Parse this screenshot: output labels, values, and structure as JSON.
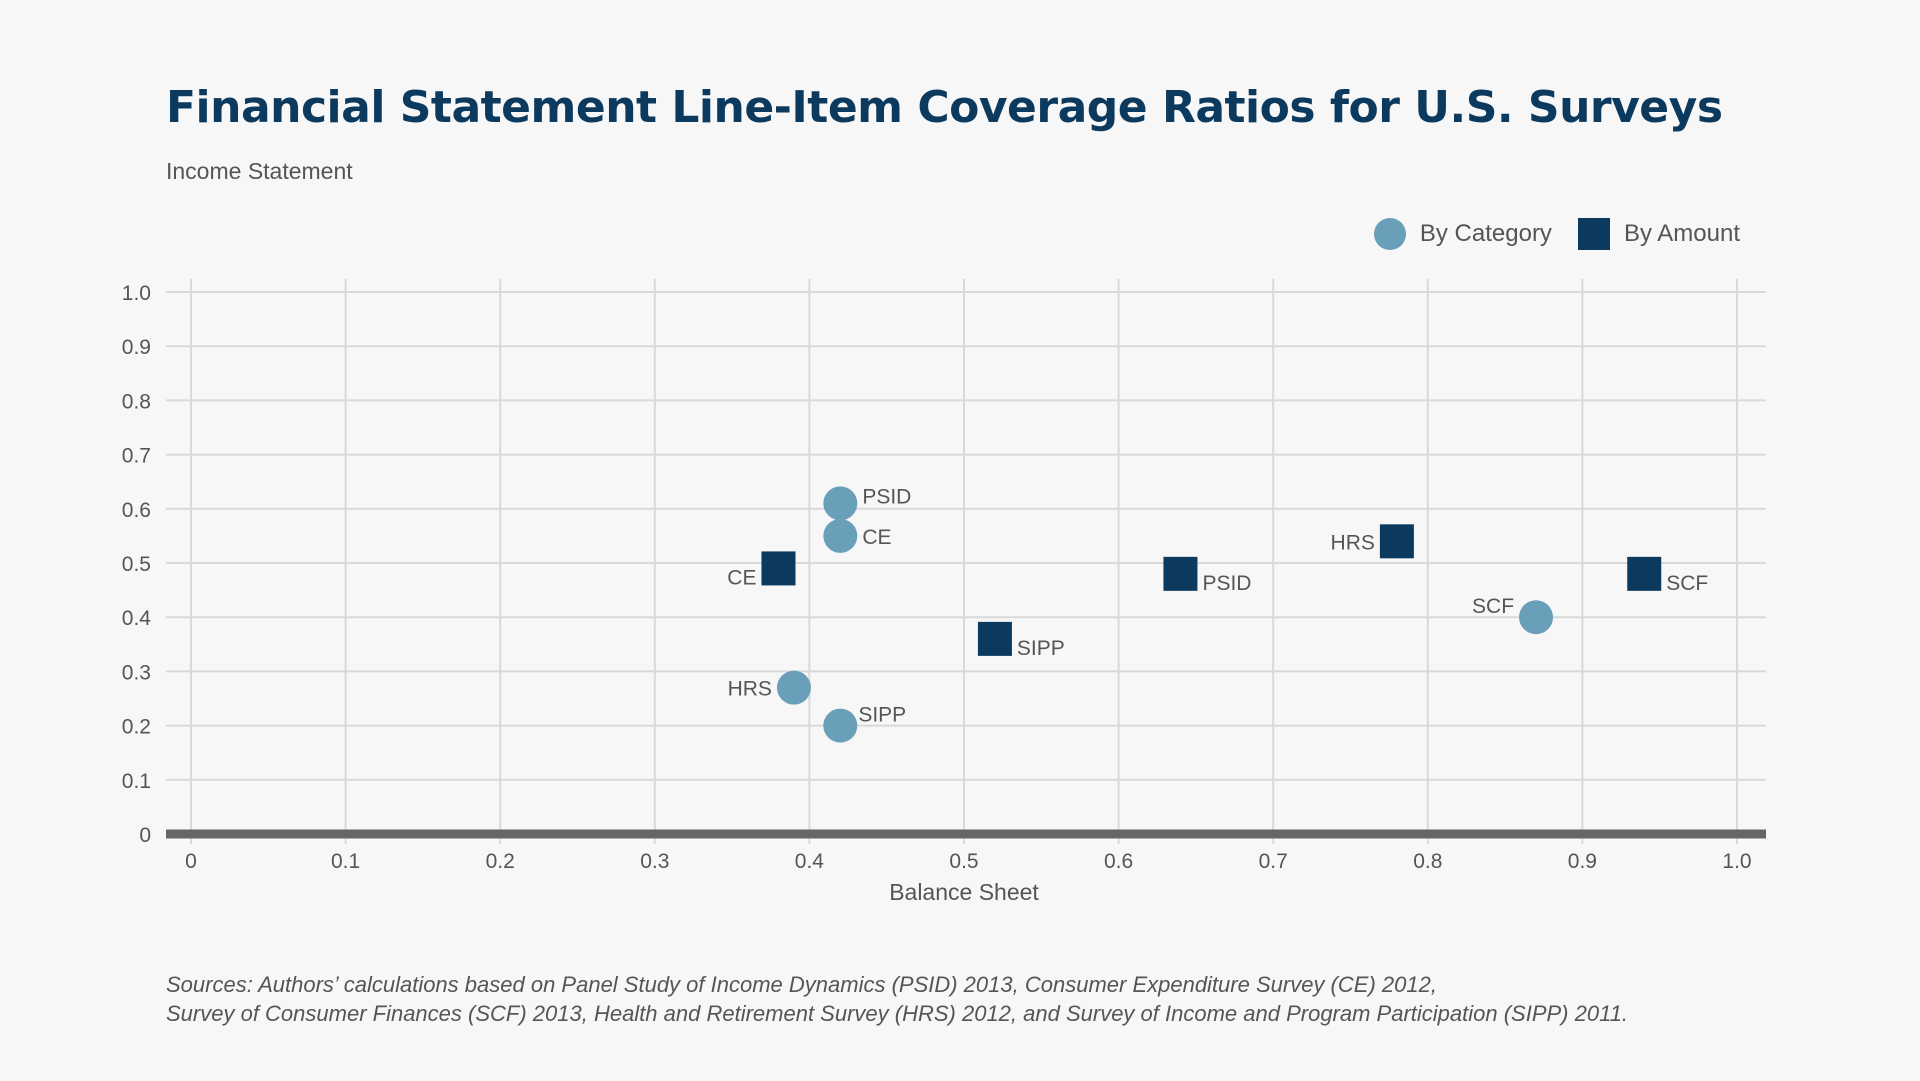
{
  "header": {
    "title": "Financial Statement Line-Item Coverage Ratios for U.S. Surveys",
    "subtitle": "Income Statement"
  },
  "legend": {
    "by_category": "By Category",
    "by_amount": "By Amount"
  },
  "colors": {
    "by_category": "#6a9fba",
    "by_amount": "#0c3a5e",
    "axis": "#666666",
    "grid": "#d9d9d9"
  },
  "chart_data": {
    "type": "scatter",
    "title": "Financial Statement Line-Item Coverage Ratios for U.S. Surveys",
    "xlabel": "Balance Sheet",
    "ylabel": "Income Statement",
    "xlim": [
      0,
      1.0
    ],
    "ylim": [
      0,
      1.0
    ],
    "x_ticks": [
      "0",
      "0.1",
      "0.2",
      "0.3",
      "0.4",
      "0.5",
      "0.6",
      "0.7",
      "0.8",
      "0.9",
      "1.0"
    ],
    "y_ticks": [
      "0",
      "0.1",
      "0.2",
      "0.3",
      "0.4",
      "0.5",
      "0.6",
      "0.7",
      "0.8",
      "0.9",
      "1.0"
    ],
    "grid": true,
    "legend_position": "top-right",
    "series": [
      {
        "name": "By Category",
        "marker": "circle",
        "points": [
          {
            "label": "PSID",
            "x": 0.42,
            "y": 0.61
          },
          {
            "label": "CE",
            "x": 0.42,
            "y": 0.55
          },
          {
            "label": "HRS",
            "x": 0.39,
            "y": 0.27
          },
          {
            "label": "SIPP",
            "x": 0.42,
            "y": 0.2
          },
          {
            "label": "SCF",
            "x": 0.87,
            "y": 0.4
          }
        ]
      },
      {
        "name": "By Amount",
        "marker": "square",
        "points": [
          {
            "label": "CE",
            "x": 0.38,
            "y": 0.49
          },
          {
            "label": "PSID",
            "x": 0.64,
            "y": 0.48
          },
          {
            "label": "SIPP",
            "x": 0.52,
            "y": 0.36
          },
          {
            "label": "HRS",
            "x": 0.78,
            "y": 0.54
          },
          {
            "label": "SCF",
            "x": 0.94,
            "y": 0.48
          }
        ]
      }
    ]
  },
  "source": {
    "line1": "Sources: Authors’ calculations based on Panel Study of Income Dynamics (PSID) 2013, Consumer Expenditure Survey (CE) 2012,",
    "line2": "Survey of Consumer Finances (SCF) 2013, Health and Retirement Survey (HRS) 2012, and Survey of Income and Program Participation (SIPP) 2011."
  }
}
